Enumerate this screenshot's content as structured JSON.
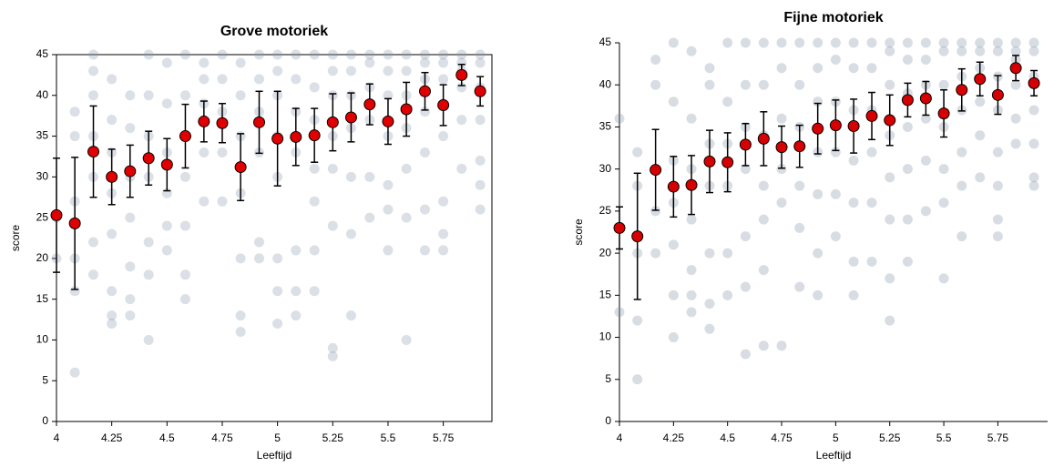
{
  "chart_data": [
    {
      "type": "scatter",
      "title": "Grove motoriek",
      "x_label": "Leeftijd",
      "y_label": "score",
      "xlim": [
        4,
        5.97
      ],
      "ylim": [
        0,
        45
      ],
      "xticks": [
        4,
        4.25,
        4.5,
        4.75,
        5,
        5.25,
        5.5,
        5.75
      ],
      "yticks": [
        0,
        5,
        10,
        15,
        20,
        25,
        30,
        35,
        40,
        45
      ],
      "x": [
        4,
        4.083,
        4.167,
        4.25,
        4.333,
        4.417,
        4.5,
        4.583,
        4.667,
        4.75,
        4.833,
        4.917,
        5,
        5.083,
        5.167,
        5.25,
        5.333,
        5.417,
        5.5,
        5.583,
        5.667,
        5.75,
        5.833,
        5.917
      ],
      "dot_color": "#8796ab",
      "dot_values": [
        [
          25,
          20
        ],
        [
          38,
          35,
          27,
          20,
          16,
          6
        ],
        [
          45,
          43,
          40,
          35,
          30,
          22,
          18
        ],
        [
          42,
          37,
          33,
          28,
          23,
          16,
          13,
          12
        ],
        [
          40,
          36,
          30,
          25,
          19,
          15,
          13
        ],
        [
          45,
          40,
          35,
          30,
          22,
          18,
          10
        ],
        [
          44,
          39,
          33,
          28,
          24,
          21
        ],
        [
          45,
          40,
          35,
          30,
          24,
          18,
          15
        ],
        [
          44,
          42,
          39,
          33,
          27
        ],
        [
          45,
          42,
          38,
          33,
          27
        ],
        [
          44,
          40,
          35,
          28,
          20,
          13,
          11
        ],
        [
          45,
          42,
          38,
          33,
          22,
          20
        ],
        [
          45,
          43,
          40,
          35,
          30,
          20,
          16,
          12
        ],
        [
          45,
          42,
          38,
          33,
          21,
          16,
          13
        ],
        [
          45,
          41,
          37,
          31,
          27,
          21,
          16
        ],
        [
          45,
          43,
          40,
          35,
          31,
          24,
          9,
          8
        ],
        [
          45,
          43,
          40,
          36,
          30,
          23,
          13
        ],
        [
          45,
          44,
          41,
          37,
          30,
          25
        ],
        [
          45,
          43,
          40,
          35,
          29,
          26,
          21
        ],
        [
          45,
          43,
          40,
          36,
          31,
          25,
          10
        ],
        [
          45,
          44,
          42,
          38,
          33,
          26,
          21
        ],
        [
          45,
          44,
          42,
          39,
          35,
          27,
          23,
          21
        ],
        [
          45,
          44,
          43,
          41,
          37,
          31
        ],
        [
          45,
          44,
          41,
          37,
          32,
          29,
          26
        ]
      ],
      "series": [
        {
          "color": "#e00000",
          "values": [
            25.3,
            24.3,
            33.1,
            30.0,
            30.7,
            32.3,
            31.5,
            35.0,
            36.8,
            36.6,
            31.2,
            36.7,
            34.7,
            34.9,
            35.1,
            36.7,
            37.3,
            38.9,
            36.8,
            38.3,
            40.5,
            38.8,
            42.5,
            40.5
          ],
          "errors": [
            7.0,
            8.1,
            5.6,
            3.4,
            3.2,
            3.3,
            3.2,
            3.9,
            2.5,
            2.4,
            4.1,
            3.8,
            5.8,
            3.5,
            3.3,
            3.5,
            3.0,
            2.5,
            2.8,
            3.3,
            2.3,
            2.5,
            1.3,
            1.8
          ]
        }
      ]
    },
    {
      "type": "scatter",
      "title": "Fijne motoriek",
      "x_label": "Leeftijd",
      "y_label": "score",
      "xlim": [
        4,
        5.98
      ],
      "ylim": [
        0,
        45
      ],
      "xticks": [
        4,
        4.25,
        4.5,
        4.75,
        5,
        5.25,
        5.5,
        5.75
      ],
      "yticks": [
        0,
        5,
        10,
        15,
        20,
        25,
        30,
        35,
        40,
        45
      ],
      "x": [
        4,
        4.083,
        4.167,
        4.25,
        4.333,
        4.417,
        4.5,
        4.583,
        4.667,
        4.75,
        4.833,
        4.917,
        5,
        5.083,
        5.167,
        5.25,
        5.333,
        5.417,
        5.5,
        5.583,
        5.667,
        5.75,
        5.833,
        5.917
      ],
      "dot_color": "#7f8ea3",
      "dot_values": [
        [
          36,
          23,
          13
        ],
        [
          32,
          28,
          20,
          12,
          5
        ],
        [
          43,
          40,
          30,
          25,
          20
        ],
        [
          45,
          38,
          31,
          26,
          21,
          15,
          10
        ],
        [
          44,
          36,
          30,
          24,
          18,
          15,
          13
        ],
        [
          42,
          40,
          33,
          28,
          20,
          14,
          11
        ],
        [
          45,
          38,
          33,
          28,
          20,
          15
        ],
        [
          45,
          40,
          35,
          30,
          22,
          16,
          8
        ],
        [
          45,
          40,
          34,
          28,
          24,
          18,
          9
        ],
        [
          45,
          42,
          36,
          30,
          26,
          9
        ],
        [
          45,
          40,
          35,
          28,
          23,
          16
        ],
        [
          45,
          42,
          38,
          32,
          27,
          20,
          15
        ],
        [
          45,
          43,
          38,
          32,
          27,
          22
        ],
        [
          45,
          42,
          37,
          31,
          26,
          19,
          15
        ],
        [
          45,
          42,
          37,
          32,
          26,
          19
        ],
        [
          45,
          44,
          40,
          34,
          29,
          24,
          17,
          12
        ],
        [
          45,
          43,
          39,
          35,
          30,
          24,
          19
        ],
        [
          45,
          43,
          40,
          36,
          31,
          25
        ],
        [
          45,
          44,
          40,
          35,
          30,
          26,
          17
        ],
        [
          45,
          44,
          41,
          37,
          32,
          28,
          22
        ],
        [
          45,
          44,
          42,
          38,
          34,
          29
        ],
        [
          45,
          44,
          41,
          37,
          32,
          28,
          24,
          22
        ],
        [
          45,
          44,
          43,
          40,
          36,
          33
        ],
        [
          45,
          44,
          41,
          37,
          33,
          29,
          28
        ]
      ],
      "series": [
        {
          "color": "#d60000",
          "values": [
            23.0,
            22.0,
            29.9,
            27.9,
            28.1,
            30.9,
            30.8,
            32.9,
            33.6,
            32.6,
            32.7,
            34.8,
            35.2,
            35.1,
            36.3,
            35.8,
            38.2,
            38.4,
            36.6,
            39.4,
            40.7,
            38.8,
            42.0,
            40.2
          ],
          "errors": [
            2.5,
            7.5,
            4.8,
            3.6,
            3.5,
            3.7,
            3.5,
            2.5,
            3.2,
            2.5,
            2.5,
            3.0,
            3.0,
            3.2,
            2.8,
            3.0,
            2.0,
            2.0,
            2.8,
            2.5,
            2.0,
            2.3,
            1.5,
            1.5
          ]
        }
      ]
    }
  ]
}
